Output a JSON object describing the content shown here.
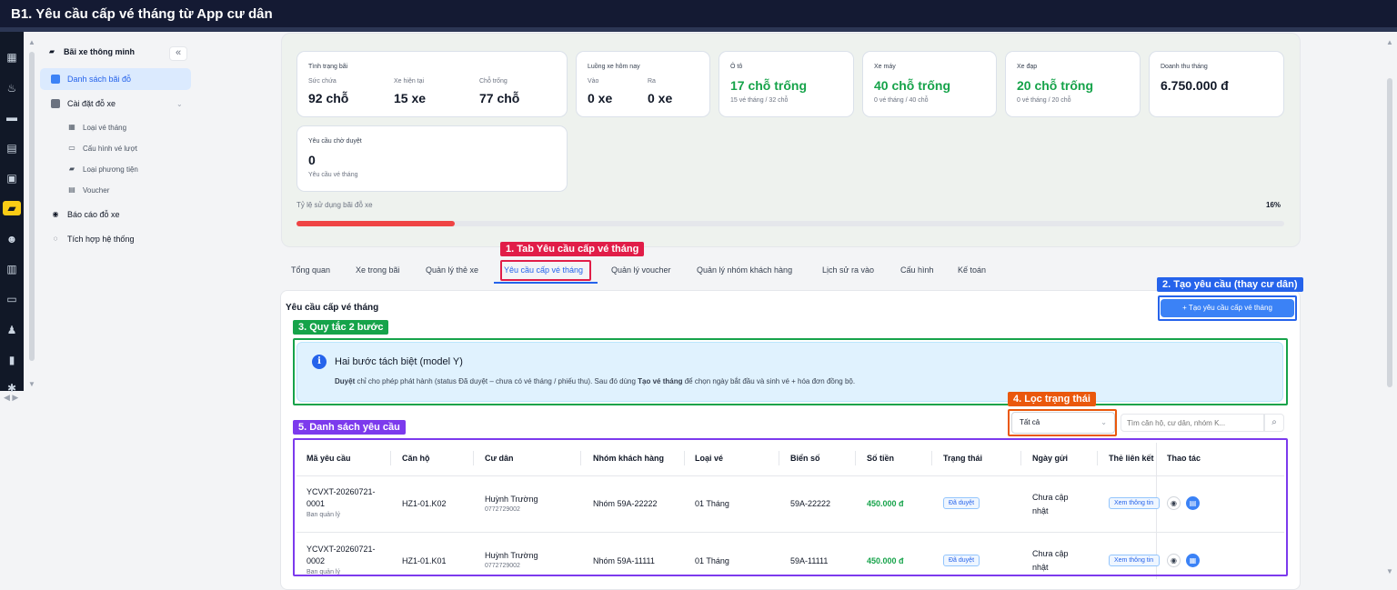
{
  "window": {
    "title": "B1. Yêu cầu cấp vé tháng từ App cư dân"
  },
  "sidebar": {
    "header": "Bãi xe thông minh",
    "collapse_label": "«",
    "items": [
      {
        "label": "Danh sách bãi đỗ",
        "active": true
      },
      {
        "label": "Cài đặt đỗ xe"
      },
      {
        "label": "Báo cáo đỗ xe"
      },
      {
        "label": "Tích hợp hệ thống"
      }
    ],
    "subitems": [
      "Loại vé tháng",
      "Cấu hình vé lượt",
      "Loại phương tiện",
      "Voucher"
    ]
  },
  "overview": {
    "status": {
      "title": "Tình trạng bãi",
      "cap_label": "Sức chứa",
      "cap_value": "92 chỗ",
      "cur_label": "Xe hiện tại",
      "cur_value": "15 xe",
      "free_label": "Chỗ trống",
      "free_value": "77 chỗ"
    },
    "flow": {
      "title": "Luồng xe hôm nay",
      "in_label": "Vào",
      "in_value": "0 xe",
      "out_label": "Ra",
      "out_value": "0 xe"
    },
    "car": {
      "title": "Ô tô",
      "value": "17 chỗ trống",
      "sub": "15 vé tháng / 32 chỗ"
    },
    "moto": {
      "title": "Xe máy",
      "value": "40 chỗ trống",
      "sub": "0 vé tháng / 40 chỗ"
    },
    "bike": {
      "title": "Xe đạp",
      "value": "20 chỗ trống",
      "sub": "0 vé tháng / 20 chỗ"
    },
    "revenue": {
      "title": "Doanh thu tháng",
      "value": "6.750.000 đ"
    },
    "pending": {
      "title": "Yêu cầu chờ duyệt",
      "value": "0",
      "sub": "Yêu cầu vé tháng"
    },
    "ratio": {
      "label": "Tỷ lệ sử dụng bãi đỗ xe",
      "percent_text": "16%",
      "percent": 16
    }
  },
  "tabs": [
    "Tổng quan",
    "Xe trong bãi",
    "Quản lý thẻ xe",
    "Yêu cầu cấp vé tháng",
    "Quản lý voucher",
    "Quản lý nhóm khách hàng",
    "Lịch sử ra vào",
    "Cấu hình",
    "Kế toán"
  ],
  "panel": {
    "title": "Yêu cầu cấp vé tháng",
    "create_button": "+ Tạo yêu cầu cấp vé tháng",
    "info": {
      "title": "Hai bước tách biệt (model Y)",
      "t1": "Duyệt",
      "t2": " chỉ cho phép phát hành (status Đã duyệt – chưa có vé tháng / phiếu thu). Sau đó dùng ",
      "t3": "Tạo vé tháng",
      "t4": " để chọn ngày bắt đầu và sinh vé + hóa đơn đồng bộ."
    },
    "filter": {
      "value": "Tất cả"
    },
    "search": {
      "placeholder": "Tìm căn hộ, cư dân, nhóm K..."
    }
  },
  "table": {
    "headers": [
      "Mã yêu cầu",
      "Căn hộ",
      "Cư dân",
      "Nhóm khách hàng",
      "Loại vé",
      "Biển số",
      "Số tiền",
      "Trạng thái",
      "Ngày gửi",
      "Thẻ liên kết",
      "Thao tác"
    ],
    "rows": [
      {
        "code1": "YCVXT-20260721-",
        "code2": "0001",
        "source": "Ban quản lý",
        "apt": "HZ1-01.K02",
        "resident": "Huỳnh Trường",
        "phone": "0772729002",
        "group": "Nhóm 59A-22222",
        "ticket": "01 Tháng",
        "plate": "59A-22222",
        "amount": "450.000 đ",
        "status": "Đã duyệt",
        "date1": "Chưa cập",
        "date2": "nhật",
        "link": "Xem thông tin"
      },
      {
        "code1": "YCVXT-20260721-",
        "code2": "0002",
        "source": "Ban quản lý",
        "apt": "HZ1-01.K01",
        "resident": "Huỳnh Trường",
        "phone": "0772729002",
        "group": "Nhóm 59A-11111",
        "ticket": "01 Tháng",
        "plate": "59A-11111",
        "amount": "450.000 đ",
        "status": "Đã duyệt",
        "date1": "Chưa cập",
        "date2": "nhật",
        "link": "Xem thông tin"
      }
    ]
  },
  "annotations": {
    "a1": "1. Tab Yêu cầu cấp vé tháng",
    "a2": "2. Tạo yêu cầu (thay cư dân)",
    "a3": "3. Quy tắc 2 bước",
    "a4": "4. Lọc trạng thái",
    "a5": "5. Danh sách yêu cầu"
  },
  "colors": {
    "red": "#e11d48",
    "blue": "#2563eb",
    "green": "#16a34a",
    "orange": "#ea580c",
    "purple": "#7c3aed"
  }
}
